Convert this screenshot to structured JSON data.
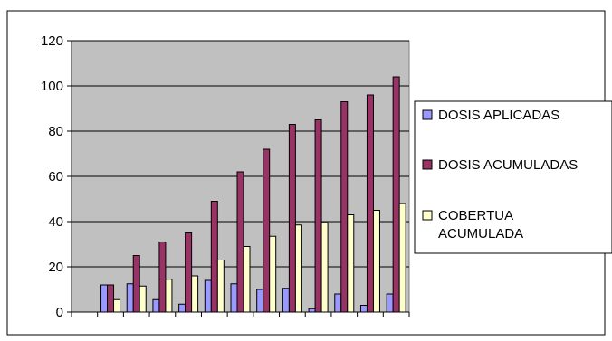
{
  "chart_data": {
    "type": "bar",
    "title": "",
    "xlabel": "",
    "ylabel": "",
    "ylim": [
      0,
      120
    ],
    "yticks": [
      "0",
      "20",
      "40",
      "60",
      "80",
      "100",
      "120"
    ],
    "grid": true,
    "legend_position": "right",
    "categories": [
      "",
      "",
      "",
      "",
      "",
      "",
      "",
      "",
      "",
      "",
      "",
      "",
      ""
    ],
    "series": [
      {
        "name": "DOSIS APLICADAS",
        "color": "#9999ff",
        "values": [
          0,
          12,
          12.5,
          5.5,
          3.5,
          14,
          12.5,
          10,
          10.5,
          1.5,
          8,
          3,
          8
        ]
      },
      {
        "name": "DOSIS ACUMULADAS",
        "color": "#993366",
        "values": [
          0,
          12,
          25,
          31,
          35,
          49,
          62,
          72,
          83,
          85,
          93,
          96,
          104
        ]
      },
      {
        "name": "COBERTUA ACUMULADA",
        "color": "#ffffcc",
        "values": [
          0,
          5.5,
          11.5,
          14.5,
          16,
          23,
          29,
          33.5,
          38.5,
          39.5,
          43,
          45,
          48
        ]
      }
    ],
    "legend_lines": [
      [
        "DOSIS APLICADAS"
      ],
      [
        "DOSIS ACUMULADAS"
      ],
      [
        "COBERTUA",
        "ACUMULADA"
      ]
    ]
  }
}
